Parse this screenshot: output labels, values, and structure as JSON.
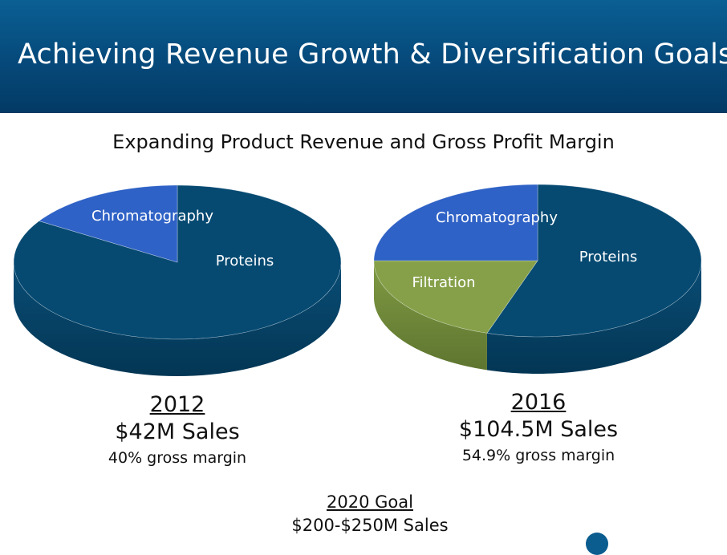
{
  "header": {
    "title": "Achieving Revenue Growth & Diversification Goals"
  },
  "subtitle": "Expanding Product Revenue and Gross Profit Margin",
  "colors": {
    "header": "#06497a",
    "proteins": "#064a72",
    "chromatography": "#2f62c6",
    "filtration": "#86a04a"
  },
  "chart_data": [
    {
      "type": "pie",
      "title": "2012",
      "slices": [
        {
          "label": "Chromatography",
          "value": 16,
          "color": "#2f62c6"
        },
        {
          "label": "Proteins",
          "value": 84,
          "color": "#064a72"
        }
      ]
    },
    {
      "type": "pie",
      "title": "2016",
      "slices": [
        {
          "label": "Chromatography",
          "value": 25,
          "color": "#2f62c6"
        },
        {
          "label": "Filtration",
          "value": 20,
          "color": "#86a04a"
        },
        {
          "label": "Proteins",
          "value": 55,
          "color": "#064a72"
        }
      ]
    }
  ],
  "captions": [
    {
      "year": "2012",
      "sales": "$42M Sales",
      "margin": "40% gross margin"
    },
    {
      "year": "2016",
      "sales": "$104.5M Sales",
      "margin": "54.9% gross margin"
    }
  ],
  "goal": {
    "title": "2020 Goal",
    "sales": "$200-$250M Sales"
  }
}
